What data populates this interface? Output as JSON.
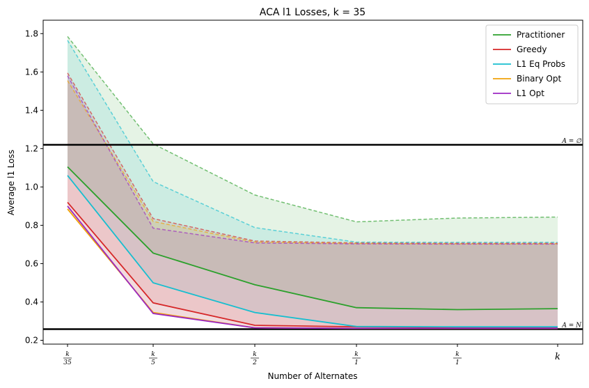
{
  "chart_data": {
    "type": "line",
    "title": "ACA l1 Losses, k = 35",
    "xlabel": "Number of Alternates",
    "ylabel": "Average l1 Loss",
    "categories": [
      "k/35",
      "k/5",
      "k/2",
      "k/1",
      "k/1",
      "k"
    ],
    "ylim": [
      0.18,
      1.87
    ],
    "yticks": [
      0.2,
      0.4,
      0.6,
      0.8,
      1.0,
      1.2,
      1.4,
      1.6,
      1.8
    ],
    "grid": false,
    "legend_position": "top-right",
    "reference_lines": [
      {
        "label": "A = ∅",
        "value": 1.22
      },
      {
        "label": "A = N",
        "value": 0.258
      }
    ],
    "series": [
      {
        "name": "Practitioner",
        "color": "#2ca02c",
        "mean": [
          1.105,
          0.655,
          0.49,
          0.37,
          0.36,
          0.365
        ],
        "upper": [
          1.785,
          1.225,
          0.958,
          0.818,
          0.838,
          0.843
        ]
      },
      {
        "name": "Greedy",
        "color": "#d62728",
        "mean": [
          0.92,
          0.395,
          0.278,
          0.27,
          0.268,
          0.268
        ],
        "upper": [
          1.595,
          0.835,
          0.718,
          0.708,
          0.706,
          0.706
        ]
      },
      {
        "name": "L1 Eq Probs",
        "color": "#17becf",
        "mean": [
          1.06,
          0.5,
          0.345,
          0.272,
          0.27,
          0.27
        ],
        "upper": [
          1.765,
          1.028,
          0.788,
          0.712,
          0.711,
          0.711
        ]
      },
      {
        "name": "Binary Opt",
        "color": "#f0a30a",
        "mean": [
          0.885,
          0.345,
          0.265,
          0.262,
          0.262,
          0.262
        ],
        "upper": [
          1.555,
          0.82,
          0.712,
          0.705,
          0.703,
          0.703
        ]
      },
      {
        "name": "L1 Opt",
        "color": "#9b27c2",
        "mean": [
          0.9,
          0.34,
          0.265,
          0.262,
          0.262,
          0.262
        ],
        "upper": [
          1.58,
          0.785,
          0.708,
          0.703,
          0.702,
          0.702
        ]
      }
    ]
  }
}
